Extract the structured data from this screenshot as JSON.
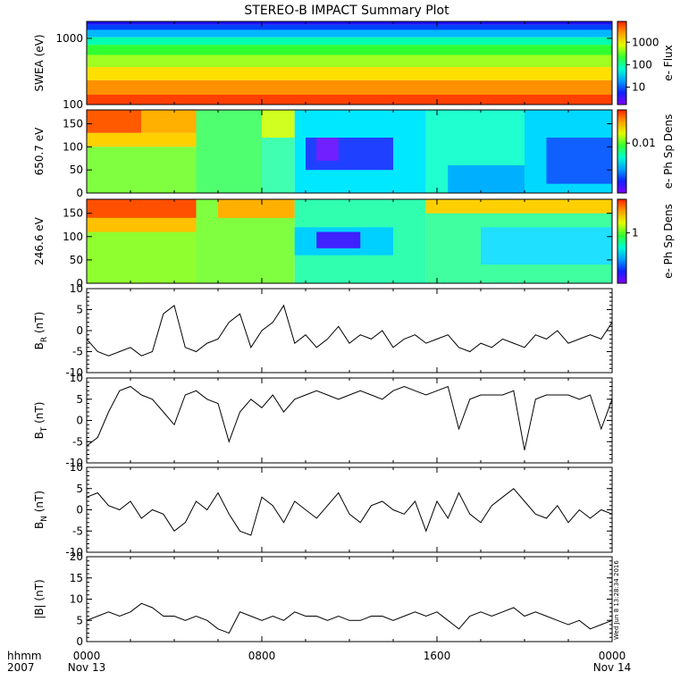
{
  "title": "STEREO-B IMPACT Summary Plot",
  "time_axis": {
    "header": [
      "hhmm",
      "2007"
    ],
    "ticks": [
      {
        "hhmm": "0000",
        "date": "Nov 13"
      },
      {
        "hhmm": "0800",
        "date": ""
      },
      {
        "hhmm": "1600",
        "date": ""
      },
      {
        "hhmm": "0000",
        "date": "Nov 14"
      }
    ]
  },
  "timestamp": "Wed Jun  8 13:28:34 2016",
  "chart_data": [
    {
      "type": "heatmap",
      "ylabel": "SWEA (eV)",
      "yscale": "log",
      "ylim": [
        100,
        1800
      ],
      "yticks": [
        "1000",
        "100"
      ],
      "colorbar": {
        "label": "e- Flux",
        "ticks": [
          "1000",
          "100",
          "10"
        ]
      },
      "bands": [
        {
          "y": 1700,
          "color": "#1a10ff"
        },
        {
          "y": 1500,
          "color": "#0040ff"
        },
        {
          "y": 1200,
          "color": "#00b8ff"
        },
        {
          "y": 900,
          "color": "#00ffb0"
        },
        {
          "y": 700,
          "color": "#30ff30"
        },
        {
          "y": 450,
          "color": "#a0ff20"
        },
        {
          "y": 300,
          "color": "#ffe000"
        },
        {
          "y": 180,
          "color": "#ff9000"
        },
        {
          "y": 110,
          "color": "#ff4000"
        }
      ]
    },
    {
      "type": "heatmap",
      "ylabel": "650.7 eV",
      "ylim": [
        0,
        180
      ],
      "yticks": [
        "150",
        "100",
        "50",
        "0"
      ],
      "colorbar": {
        "label": "e- Ph Sp Dens",
        "ticks": [
          "0.01"
        ]
      },
      "pitch_angle_cells": [
        {
          "t0": 0,
          "t1": 2.5,
          "a0": 130,
          "a1": 180,
          "color": "#ff5a00"
        },
        {
          "t0": 0,
          "t1": 5,
          "a0": 100,
          "a1": 130,
          "color": "#ffd000"
        },
        {
          "t0": 2.5,
          "t1": 5,
          "a0": 130,
          "a1": 180,
          "color": "#ffb000"
        },
        {
          "t0": 0,
          "t1": 5,
          "a0": 0,
          "a1": 100,
          "color": "#80ff40"
        },
        {
          "t0": 5,
          "t1": 8,
          "a0": 0,
          "a1": 180,
          "color": "#50ff70"
        },
        {
          "t0": 8,
          "t1": 9.5,
          "a0": 120,
          "a1": 180,
          "color": "#d0ff20"
        },
        {
          "t0": 8,
          "t1": 9.5,
          "a0": 0,
          "a1": 120,
          "color": "#40ffb0"
        },
        {
          "t0": 9.5,
          "t1": 15.5,
          "a0": 0,
          "a1": 180,
          "color": "#00e8ff"
        },
        {
          "t0": 10,
          "t1": 14,
          "a0": 50,
          "a1": 120,
          "color": "#2040ff"
        },
        {
          "t0": 10.5,
          "t1": 11.5,
          "a0": 70,
          "a1": 120,
          "color": "#7020ff"
        },
        {
          "t0": 15.5,
          "t1": 20,
          "a0": 0,
          "a1": 180,
          "color": "#20ffd0"
        },
        {
          "t0": 16.5,
          "t1": 20,
          "a0": 0,
          "a1": 60,
          "color": "#00b0ff"
        },
        {
          "t0": 20,
          "t1": 24,
          "a0": 0,
          "a1": 180,
          "color": "#00d8ff"
        },
        {
          "t0": 21,
          "t1": 24,
          "a0": 20,
          "a1": 120,
          "color": "#1060ff"
        }
      ]
    },
    {
      "type": "heatmap",
      "ylabel": "246.6 eV",
      "ylim": [
        0,
        180
      ],
      "yticks": [
        "150",
        "100",
        "50",
        "0"
      ],
      "colorbar": {
        "label": "e- Ph Sp Dens",
        "ticks": [
          "1"
        ]
      },
      "pitch_angle_cells": [
        {
          "t0": 0,
          "t1": 5,
          "a0": 0,
          "a1": 180,
          "color": "#90ff30"
        },
        {
          "t0": 0,
          "t1": 5,
          "a0": 140,
          "a1": 180,
          "color": "#ff5000"
        },
        {
          "t0": 0,
          "t1": 5,
          "a0": 110,
          "a1": 140,
          "color": "#ffc000"
        },
        {
          "t0": 5,
          "t1": 9.5,
          "a0": 0,
          "a1": 180,
          "color": "#80ff40"
        },
        {
          "t0": 6,
          "t1": 9.5,
          "a0": 140,
          "a1": 180,
          "color": "#ffb000"
        },
        {
          "t0": 9.5,
          "t1": 15.5,
          "a0": 0,
          "a1": 180,
          "color": "#30ffb0"
        },
        {
          "t0": 9.5,
          "t1": 14,
          "a0": 60,
          "a1": 120,
          "color": "#00d0ff"
        },
        {
          "t0": 10.5,
          "t1": 12.5,
          "a0": 75,
          "a1": 110,
          "color": "#4020ff"
        },
        {
          "t0": 15.5,
          "t1": 24,
          "a0": 0,
          "a1": 180,
          "color": "#40ffa0"
        },
        {
          "t0": 15.5,
          "t1": 24,
          "a0": 150,
          "a1": 180,
          "color": "#ffd000"
        },
        {
          "t0": 18,
          "t1": 24,
          "a0": 40,
          "a1": 120,
          "color": "#20e0ff"
        }
      ]
    },
    {
      "type": "line",
      "ylabel": "B",
      "ylabel_sub": "R",
      "yunit": "(nT)",
      "ylim": [
        -10,
        10
      ],
      "yticks": [
        "10",
        "5",
        "0",
        "-5",
        "-10"
      ],
      "x": [
        0,
        0.5,
        1,
        1.5,
        2,
        2.5,
        3,
        3.5,
        4,
        4.5,
        5,
        5.5,
        6,
        6.5,
        7,
        7.5,
        8,
        8.5,
        9,
        9.5,
        10,
        10.5,
        11,
        11.5,
        12,
        12.5,
        13,
        13.5,
        14,
        14.5,
        15,
        15.5,
        16,
        16.5,
        17,
        17.5,
        18,
        18.5,
        19,
        19.5,
        20,
        20.5,
        21,
        21.5,
        22,
        22.5,
        23,
        23.5,
        24
      ],
      "y": [
        -2,
        -5,
        -6,
        -5,
        -4,
        -6,
        -5,
        4,
        6,
        -4,
        -5,
        -3,
        -2,
        2,
        4,
        -4,
        0,
        2,
        6,
        -3,
        -1,
        -4,
        -2,
        1,
        -3,
        -1,
        -2,
        0,
        -4,
        -2,
        -1,
        -3,
        -2,
        -1,
        -4,
        -5,
        -3,
        -4,
        -2,
        -3,
        -4,
        -1,
        -2,
        0,
        -3,
        -2,
        -1,
        -2,
        2
      ]
    },
    {
      "type": "line",
      "ylabel": "B",
      "ylabel_sub": "T",
      "yunit": "(nT)",
      "ylim": [
        -10,
        10
      ],
      "yticks": [
        "10",
        "5",
        "0",
        "-5",
        "-10"
      ],
      "x": [
        0,
        0.5,
        1,
        1.5,
        2,
        2.5,
        3,
        3.5,
        4,
        4.5,
        5,
        5.5,
        6,
        6.5,
        7,
        7.5,
        8,
        8.5,
        9,
        9.5,
        10,
        10.5,
        11,
        11.5,
        12,
        12.5,
        13,
        13.5,
        14,
        14.5,
        15,
        15.5,
        16,
        16.5,
        17,
        17.5,
        18,
        18.5,
        19,
        19.5,
        20,
        20.5,
        21,
        21.5,
        22,
        22.5,
        23,
        23.5,
        24
      ],
      "y": [
        -6,
        -4,
        2,
        7,
        8,
        6,
        5,
        2,
        -1,
        6,
        7,
        5,
        4,
        -5,
        2,
        5,
        3,
        6,
        2,
        5,
        6,
        7,
        6,
        5,
        6,
        7,
        6,
        5,
        7,
        8,
        7,
        6,
        7,
        8,
        -2,
        5,
        6,
        6,
        6,
        7,
        -7,
        5,
        6,
        6,
        6,
        5,
        6,
        -2,
        5
      ]
    },
    {
      "type": "line",
      "ylabel": "B",
      "ylabel_sub": "N",
      "yunit": "(nT)",
      "ylim": [
        -10,
        10
      ],
      "yticks": [
        "10",
        "5",
        "0",
        "-5",
        "-10"
      ],
      "x": [
        0,
        0.5,
        1,
        1.5,
        2,
        2.5,
        3,
        3.5,
        4,
        4.5,
        5,
        5.5,
        6,
        6.5,
        7,
        7.5,
        8,
        8.5,
        9,
        9.5,
        10,
        10.5,
        11,
        11.5,
        12,
        12.5,
        13,
        13.5,
        14,
        14.5,
        15,
        15.5,
        16,
        16.5,
        17,
        17.5,
        18,
        18.5,
        19,
        19.5,
        20,
        20.5,
        21,
        21.5,
        22,
        22.5,
        23,
        23.5,
        24
      ],
      "y": [
        3,
        4,
        1,
        0,
        2,
        -2,
        0,
        -1,
        -5,
        -3,
        2,
        0,
        4,
        -1,
        -5,
        -6,
        3,
        1,
        -3,
        2,
        0,
        -2,
        1,
        4,
        -1,
        -3,
        1,
        2,
        0,
        -1,
        2,
        -5,
        2,
        -2,
        4,
        -1,
        -3,
        1,
        3,
        5,
        2,
        -1,
        -2,
        1,
        -3,
        0,
        -2,
        0,
        -1
      ]
    },
    {
      "type": "line",
      "ylabel": "|B|",
      "yunit": "(nT)",
      "ylim": [
        0,
        20
      ],
      "yticks": [
        "20",
        "15",
        "10",
        "5",
        "0"
      ],
      "x": [
        0,
        0.5,
        1,
        1.5,
        2,
        2.5,
        3,
        3.5,
        4,
        4.5,
        5,
        5.5,
        6,
        6.5,
        7,
        7.5,
        8,
        8.5,
        9,
        9.5,
        10,
        10.5,
        11,
        11.5,
        12,
        12.5,
        13,
        13.5,
        14,
        14.5,
        15,
        15.5,
        16,
        16.5,
        17,
        17.5,
        18,
        18.5,
        19,
        19.5,
        20,
        20.5,
        21,
        21.5,
        22,
        22.5,
        23,
        23.5,
        24
      ],
      "y": [
        5,
        6,
        7,
        6,
        7,
        9,
        8,
        6,
        6,
        5,
        6,
        5,
        3,
        2,
        7,
        6,
        5,
        6,
        5,
        7,
        6,
        6,
        5,
        6,
        5,
        5,
        6,
        6,
        5,
        6,
        7,
        6,
        7,
        5,
        3,
        6,
        7,
        6,
        7,
        8,
        6,
        7,
        6,
        5,
        4,
        5,
        3,
        4,
        5
      ]
    }
  ]
}
